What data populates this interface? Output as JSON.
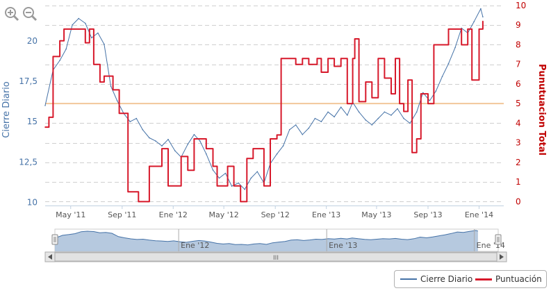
{
  "chart_data": {
    "type": "line",
    "yaxis_left": {
      "label": "Cierre Diario",
      "ticks": [
        "10",
        "12,5",
        "15",
        "17,5",
        "20"
      ],
      "range": [
        9.8,
        22.2
      ]
    },
    "yaxis_right": {
      "label": "Punutuacion Total",
      "ticks": [
        "0",
        "1",
        "2",
        "3",
        "4",
        "5",
        "6",
        "7",
        "8",
        "9",
        "10"
      ],
      "range": [
        -0.2,
        10
      ]
    },
    "xaxis": {
      "ticks": [
        "May '11",
        "Sep '11",
        "Ene '12",
        "May '12",
        "Sep '12",
        "Ene '13",
        "May '13",
        "Sep '13",
        "Ene '14"
      ],
      "tick_dates": [
        "2011-05-01",
        "2011-09-01",
        "2012-01-01",
        "2012-05-01",
        "2012-09-01",
        "2013-01-01",
        "2013-05-01",
        "2013-09-01",
        "2014-01-01"
      ],
      "range": [
        "2011-03-01",
        "2014-03-01"
      ]
    },
    "reference_line": {
      "value": 5,
      "axis": "right",
      "color": "#f2c79a"
    },
    "series": [
      {
        "name": "Cierre Diario",
        "axis": "left",
        "color": "#4572a7",
        "points": [
          [
            "2011-03-01",
            16.0
          ],
          [
            "2011-03-20",
            18.2
          ],
          [
            "2011-04-05",
            18.8
          ],
          [
            "2011-04-20",
            19.5
          ],
          [
            "2011-05-05",
            21.0
          ],
          [
            "2011-05-20",
            21.4
          ],
          [
            "2011-06-05",
            21.1
          ],
          [
            "2011-06-20",
            20.2
          ],
          [
            "2011-07-05",
            20.5
          ],
          [
            "2011-07-20",
            19.8
          ],
          [
            "2011-08-05",
            17.2
          ],
          [
            "2011-08-20",
            16.3
          ],
          [
            "2011-09-05",
            15.5
          ],
          [
            "2011-09-20",
            15.0
          ],
          [
            "2011-10-05",
            15.2
          ],
          [
            "2011-10-20",
            14.5
          ],
          [
            "2011-11-05",
            14.0
          ],
          [
            "2011-11-20",
            13.8
          ],
          [
            "2011-12-05",
            13.5
          ],
          [
            "2011-12-20",
            13.9
          ],
          [
            "2012-01-05",
            13.2
          ],
          [
            "2012-01-20",
            12.8
          ],
          [
            "2012-02-05",
            13.6
          ],
          [
            "2012-02-20",
            14.2
          ],
          [
            "2012-03-05",
            13.8
          ],
          [
            "2012-03-20",
            13.0
          ],
          [
            "2012-04-05",
            12.0
          ],
          [
            "2012-04-20",
            11.5
          ],
          [
            "2012-05-05",
            11.8
          ],
          [
            "2012-05-20",
            11.0
          ],
          [
            "2012-06-05",
            11.2
          ],
          [
            "2012-06-20",
            10.8
          ],
          [
            "2012-07-05",
            11.5
          ],
          [
            "2012-07-20",
            11.9
          ],
          [
            "2012-08-05",
            11.2
          ],
          [
            "2012-08-20",
            12.4
          ],
          [
            "2012-09-05",
            13.0
          ],
          [
            "2012-09-20",
            13.5
          ],
          [
            "2012-10-05",
            14.5
          ],
          [
            "2012-10-20",
            14.8
          ],
          [
            "2012-11-05",
            14.2
          ],
          [
            "2012-11-20",
            14.6
          ],
          [
            "2012-12-05",
            15.2
          ],
          [
            "2012-12-20",
            15.0
          ],
          [
            "2013-01-05",
            15.6
          ],
          [
            "2013-01-20",
            15.3
          ],
          [
            "2013-02-05",
            15.9
          ],
          [
            "2013-02-20",
            15.4
          ],
          [
            "2013-03-05",
            16.2
          ],
          [
            "2013-03-20",
            15.6
          ],
          [
            "2013-04-05",
            15.1
          ],
          [
            "2013-04-20",
            14.8
          ],
          [
            "2013-05-05",
            15.2
          ],
          [
            "2013-05-20",
            15.6
          ],
          [
            "2013-06-05",
            15.4
          ],
          [
            "2013-06-20",
            15.8
          ],
          [
            "2013-07-05",
            15.2
          ],
          [
            "2013-07-20",
            14.9
          ],
          [
            "2013-08-05",
            15.6
          ],
          [
            "2013-08-20",
            16.8
          ],
          [
            "2013-09-05",
            16.3
          ],
          [
            "2013-09-20",
            16.9
          ],
          [
            "2013-10-05",
            17.8
          ],
          [
            "2013-10-20",
            18.6
          ],
          [
            "2013-11-05",
            19.6
          ],
          [
            "2013-11-20",
            20.8
          ],
          [
            "2013-12-05",
            20.5
          ],
          [
            "2013-12-20",
            21.2
          ],
          [
            "2014-01-05",
            22.0
          ],
          [
            "2014-01-10",
            21.5
          ]
        ]
      },
      {
        "name": "Puntuación",
        "axis": "right",
        "color": "#d7182a",
        "points": [
          [
            "2011-03-01",
            3.8
          ],
          [
            "2011-03-10",
            4.3
          ],
          [
            "2011-03-20",
            7.4
          ],
          [
            "2011-04-05",
            8.2
          ],
          [
            "2011-04-15",
            8.8
          ],
          [
            "2011-05-20",
            8.8
          ],
          [
            "2011-06-05",
            8.1
          ],
          [
            "2011-06-15",
            8.8
          ],
          [
            "2011-06-25",
            7.0
          ],
          [
            "2011-07-10",
            6.1
          ],
          [
            "2011-07-20",
            6.4
          ],
          [
            "2011-08-10",
            5.7
          ],
          [
            "2011-08-25",
            4.5
          ],
          [
            "2011-09-15",
            0.5
          ],
          [
            "2011-10-05",
            0.5
          ],
          [
            "2011-10-10",
            0.0
          ],
          [
            "2011-11-01",
            0.0
          ],
          [
            "2011-11-05",
            1.8
          ],
          [
            "2011-11-25",
            1.8
          ],
          [
            "2011-12-05",
            2.7
          ],
          [
            "2011-12-20",
            0.8
          ],
          [
            "2012-01-10",
            0.8
          ],
          [
            "2012-01-20",
            2.3
          ],
          [
            "2012-02-05",
            1.6
          ],
          [
            "2012-02-20",
            3.2
          ],
          [
            "2012-03-10",
            3.2
          ],
          [
            "2012-03-20",
            2.7
          ],
          [
            "2012-04-05",
            1.8
          ],
          [
            "2012-04-15",
            0.8
          ],
          [
            "2012-05-05",
            0.8
          ],
          [
            "2012-05-10",
            1.8
          ],
          [
            "2012-05-25",
            0.8
          ],
          [
            "2012-06-10",
            0.0
          ],
          [
            "2012-06-25",
            2.2
          ],
          [
            "2012-07-10",
            2.7
          ],
          [
            "2012-07-25",
            2.7
          ],
          [
            "2012-08-05",
            0.8
          ],
          [
            "2012-08-20",
            3.2
          ],
          [
            "2012-09-05",
            3.4
          ],
          [
            "2012-09-15",
            7.3
          ],
          [
            "2012-10-05",
            7.3
          ],
          [
            "2012-10-20",
            7.0
          ],
          [
            "2012-11-05",
            7.3
          ],
          [
            "2012-11-20",
            7.0
          ],
          [
            "2012-12-10",
            7.3
          ],
          [
            "2012-12-20",
            6.6
          ],
          [
            "2013-01-05",
            7.3
          ],
          [
            "2013-01-20",
            6.9
          ],
          [
            "2013-02-05",
            7.3
          ],
          [
            "2013-02-20",
            5.0
          ],
          [
            "2013-03-05",
            7.3
          ],
          [
            "2013-03-10",
            8.3
          ],
          [
            "2013-03-20",
            5.1
          ],
          [
            "2013-04-05",
            6.1
          ],
          [
            "2013-04-20",
            5.3
          ],
          [
            "2013-05-05",
            7.3
          ],
          [
            "2013-05-20",
            6.3
          ],
          [
            "2013-06-05",
            5.5
          ],
          [
            "2013-06-15",
            7.3
          ],
          [
            "2013-06-25",
            5.0
          ],
          [
            "2013-07-05",
            4.6
          ],
          [
            "2013-07-15",
            6.2
          ],
          [
            "2013-07-25",
            2.5
          ],
          [
            "2013-08-05",
            3.2
          ],
          [
            "2013-08-15",
            5.5
          ],
          [
            "2013-09-01",
            5.0
          ],
          [
            "2013-09-15",
            8.0
          ],
          [
            "2013-10-05",
            8.0
          ],
          [
            "2013-10-20",
            8.8
          ],
          [
            "2013-11-05",
            8.8
          ],
          [
            "2013-11-20",
            8.0
          ],
          [
            "2013-12-05",
            8.8
          ],
          [
            "2013-12-15",
            6.2
          ],
          [
            "2014-01-01",
            8.8
          ],
          [
            "2014-01-10",
            9.2
          ]
        ]
      }
    ],
    "navigator": {
      "ticks": [
        "Ene '12",
        "Ene '13",
        "Ene '14"
      ],
      "tick_dates": [
        "2012-01-01",
        "2013-01-01",
        "2014-01-01"
      ],
      "series": "Cierre Diario"
    },
    "legend": {
      "placement": "bottom-right",
      "items": [
        "Cierre Diario",
        "Puntuación"
      ]
    }
  },
  "colors": {
    "price": "#4572a7",
    "score": "#d7182a",
    "reference": "#f2c79a",
    "nav_fill": "#a9bfd9",
    "axis_label_left": "#4572a7",
    "axis_label_right": "#c00000"
  },
  "icons": {
    "zoom_in": "zoom-in-icon",
    "zoom_out": "zoom-out-icon"
  },
  "scrollbar": {
    "grip": "III"
  }
}
